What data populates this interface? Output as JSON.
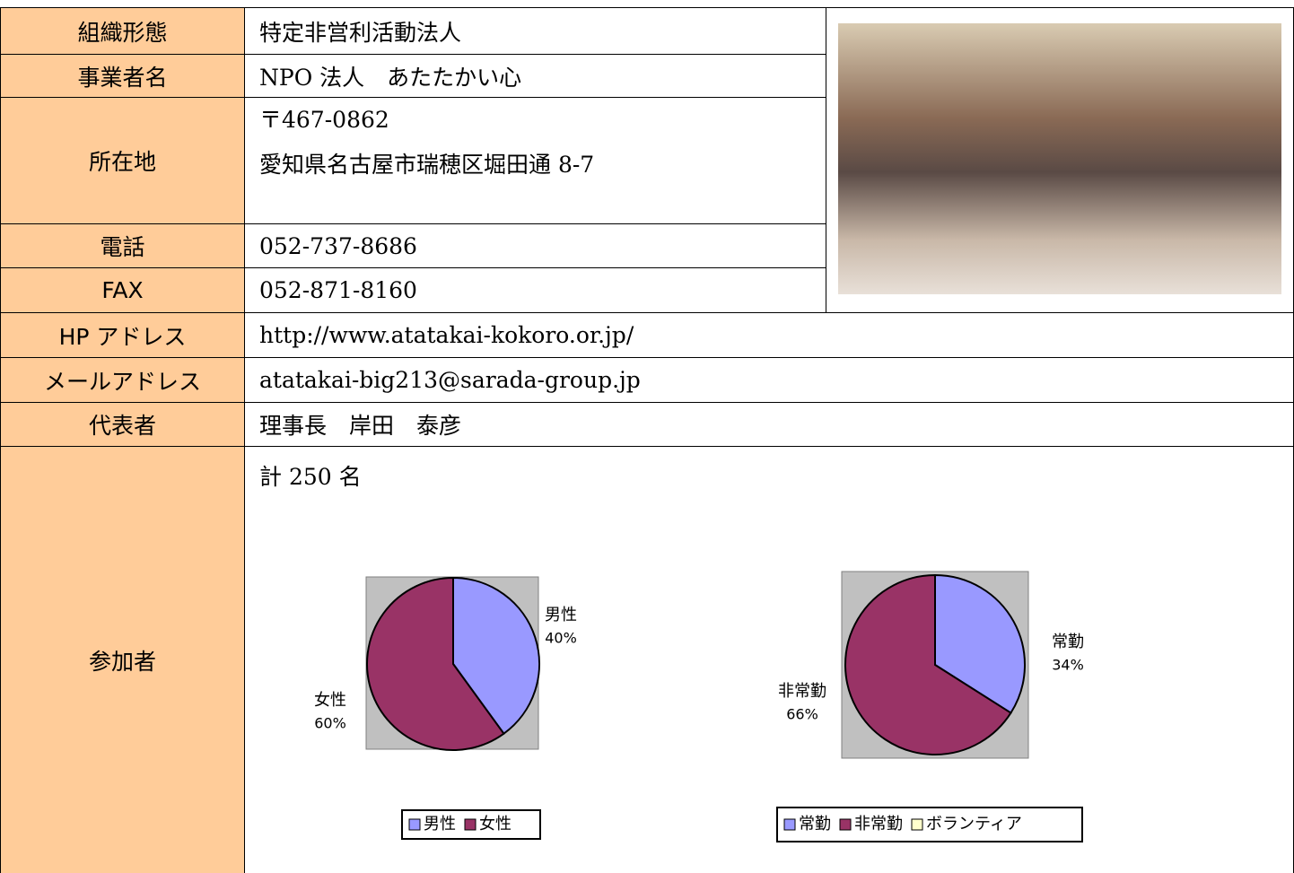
{
  "table": {
    "rows": [
      [
        "組織形態",
        "特定非営利活動法人"
      ],
      [
        "事業者名",
        "NPO 法人　あたたかい心"
      ],
      [
        "所在地",
        [
          "〒467-0862",
          "愛知県名古屋市瑞穂区堀田通 8-7"
        ]
      ],
      [
        "電話",
        "052-737-8686"
      ],
      [
        "FAX",
        "052-871-8160"
      ],
      [
        "HP アドレス",
        "http://www.atatakai-kokoro.or.jp/"
      ],
      [
        "メールアドレス",
        "atatakai-big213@sarada-group.jp"
      ],
      [
        "代表者",
        "理事長　岸田　泰彦"
      ],
      [
        "参加者",
        "計 250 名"
      ]
    ]
  },
  "chart_data": [
    {
      "type": "pie",
      "categories": [
        "男性",
        "女性"
      ],
      "values": [
        40,
        60
      ],
      "value_labels": [
        "40%",
        "60%"
      ],
      "colors": [
        "#9999ff",
        "#993366"
      ],
      "legend": "bottom"
    },
    {
      "type": "pie",
      "categories": [
        "常勤",
        "非常勤",
        "ボランティア"
      ],
      "values": [
        34,
        66,
        0
      ],
      "value_labels": [
        "34%",
        "66%",
        null
      ],
      "colors": [
        "#9999ff",
        "#993366",
        "#ffffcc"
      ],
      "legend": "bottom"
    }
  ]
}
